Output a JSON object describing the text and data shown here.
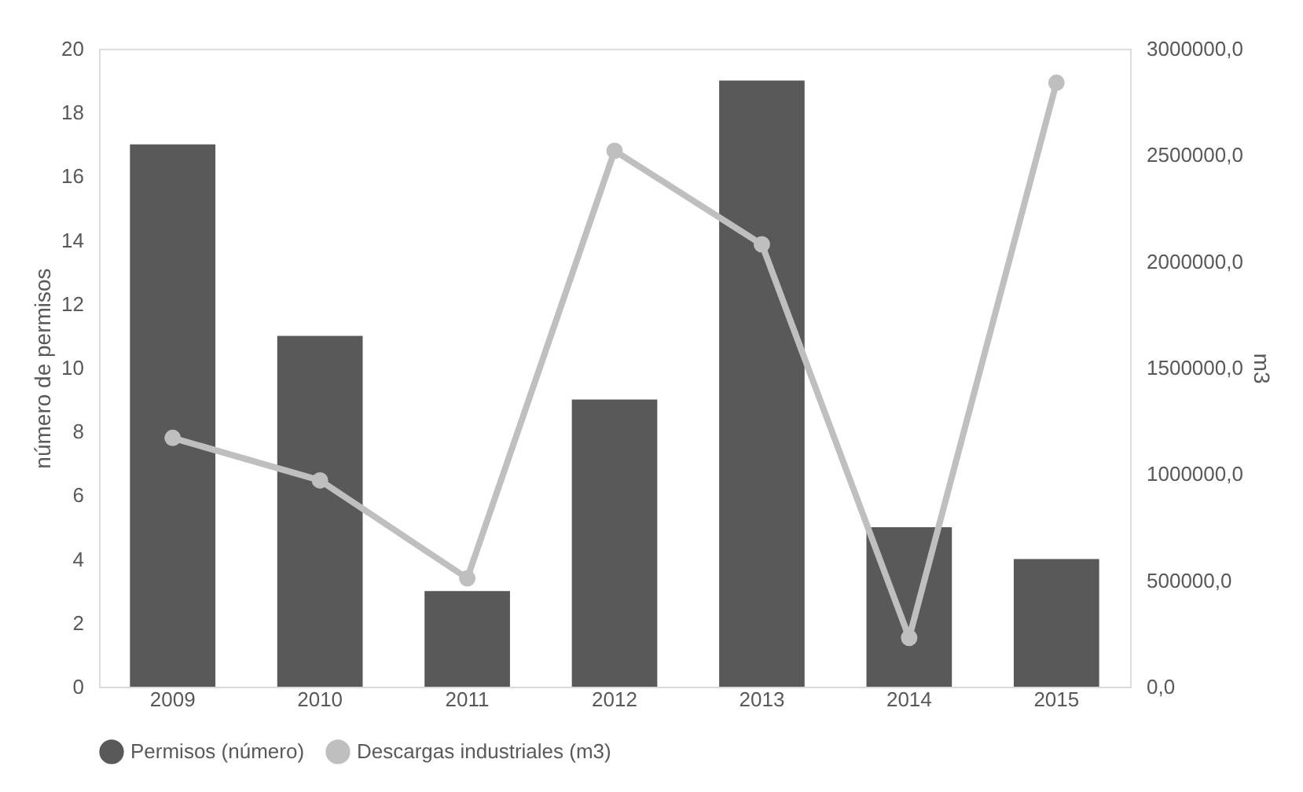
{
  "chart_data": {
    "type": "bar",
    "categories": [
      "2009",
      "2010",
      "2011",
      "2012",
      "2013",
      "2014",
      "2015"
    ],
    "ylabel": "número de permisos",
    "y2label": "m3",
    "series": [
      {
        "name": "Permisos (número)",
        "color": "#595959",
        "values": [
          17,
          11,
          3,
          9,
          19,
          5,
          4
        ]
      },
      {
        "name": "Descargas industriales (m3)",
        "type": "line",
        "axis": "y2",
        "color": "#bfbfbf",
        "marker": "circle",
        "values": [
          1170000,
          970000,
          510000,
          2520000,
          2080000,
          230000,
          2840000
        ]
      }
    ],
    "ylim": [
      0,
      20
    ],
    "yticks": [
      0,
      2,
      4,
      6,
      8,
      10,
      12,
      14,
      16,
      18,
      20
    ],
    "y2lim": [
      0,
      3000000
    ],
    "y2ticks": [
      {
        "value": 0,
        "label": "0,0"
      },
      {
        "value": 500000,
        "label": "500000,0"
      },
      {
        "value": 1000000,
        "label": "1000000,0"
      },
      {
        "value": 1500000,
        "label": "1500000,0"
      },
      {
        "value": 2000000,
        "label": "2000000,0"
      },
      {
        "value": 2500000,
        "label": "2500000,0"
      },
      {
        "value": 3000000,
        "label": "3000000,0"
      }
    ],
    "grid": false,
    "legend": "bottom"
  }
}
